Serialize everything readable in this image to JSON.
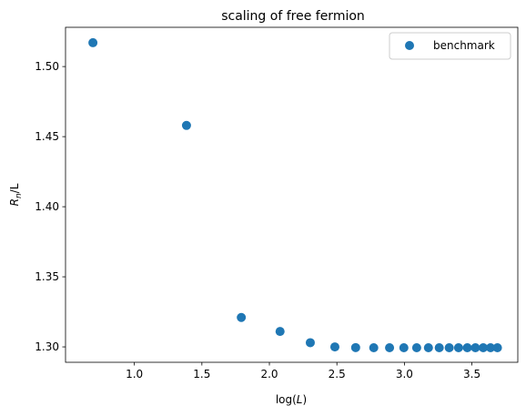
{
  "chart_data": {
    "type": "scatter",
    "title": "scaling of free fermion",
    "xlabel": {
      "prefix": "log(",
      "var": "L",
      "suffix": ")"
    },
    "ylabel": {
      "var": "R",
      "sub": "n",
      "suffix": "/L"
    },
    "xlim": [
      0.49,
      3.84
    ],
    "ylim": [
      1.289,
      1.528
    ],
    "xticks": [
      1.0,
      1.5,
      2.0,
      2.5,
      3.0,
      3.5
    ],
    "xtick_labels": [
      "1.0",
      "1.5",
      "2.0",
      "2.5",
      "3.0",
      "3.5"
    ],
    "yticks": [
      1.3,
      1.35,
      1.4,
      1.45,
      1.5
    ],
    "ytick_labels": [
      "1.30",
      "1.35",
      "1.40",
      "1.45",
      "1.50"
    ],
    "grid": false,
    "legend_position": "top-right",
    "series": [
      {
        "name": "benchmark",
        "color": "#1f77b4",
        "x": [
          0.693,
          1.386,
          1.792,
          2.079,
          2.303,
          2.485,
          2.639,
          2.773,
          2.89,
          2.996,
          3.091,
          3.178,
          3.258,
          3.332,
          3.401,
          3.466,
          3.526,
          3.584,
          3.638,
          3.689
        ],
        "y": [
          1.517,
          1.458,
          1.321,
          1.311,
          1.303,
          1.3,
          1.2995,
          1.2994,
          1.2994,
          1.2994,
          1.2994,
          1.2994,
          1.2994,
          1.2994,
          1.2994,
          1.2994,
          1.2994,
          1.2994,
          1.2994,
          1.2994
        ]
      }
    ]
  }
}
